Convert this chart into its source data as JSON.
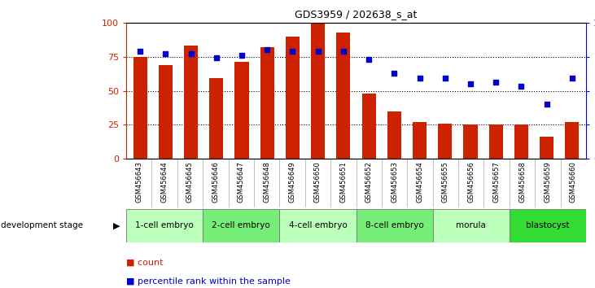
{
  "title": "GDS3959 / 202638_s_at",
  "samples": [
    "GSM456643",
    "GSM456644",
    "GSM456645",
    "GSM456646",
    "GSM456647",
    "GSM456648",
    "GSM456649",
    "GSM456650",
    "GSM456651",
    "GSM456652",
    "GSM456653",
    "GSM456654",
    "GSM456655",
    "GSM456656",
    "GSM456657",
    "GSM456658",
    "GSM456659",
    "GSM456660"
  ],
  "bar_values": [
    75,
    69,
    83,
    59,
    71,
    82,
    90,
    100,
    93,
    48,
    35,
    27,
    26,
    25,
    25,
    25,
    16,
    27
  ],
  "dot_values": [
    79,
    77,
    77,
    74,
    76,
    80,
    79,
    79,
    79,
    73,
    63,
    59,
    59,
    55,
    56,
    53,
    40,
    59
  ],
  "bar_color": "#cc2200",
  "dot_color": "#0000cc",
  "stages": [
    {
      "label": "1-cell embryo",
      "start": 0,
      "end": 3,
      "color": "#bbffbb"
    },
    {
      "label": "2-cell embryo",
      "start": 3,
      "end": 6,
      "color": "#77ee77"
    },
    {
      "label": "4-cell embryo",
      "start": 6,
      "end": 9,
      "color": "#bbffbb"
    },
    {
      "label": "8-cell embryo",
      "start": 9,
      "end": 12,
      "color": "#77ee77"
    },
    {
      "label": "morula",
      "start": 12,
      "end": 15,
      "color": "#bbffbb"
    },
    {
      "label": "blastocyst",
      "start": 15,
      "end": 18,
      "color": "#33dd33"
    }
  ],
  "xtick_bg": "#cccccc",
  "border_color": "#333333",
  "ylim": [
    0,
    100
  ],
  "yticks": [
    0,
    25,
    50,
    75,
    100
  ],
  "grid_values": [
    25,
    50,
    75
  ],
  "legend_count_label": "count",
  "legend_pct_label": "percentile rank within the sample",
  "dev_stage_label": "development stage"
}
